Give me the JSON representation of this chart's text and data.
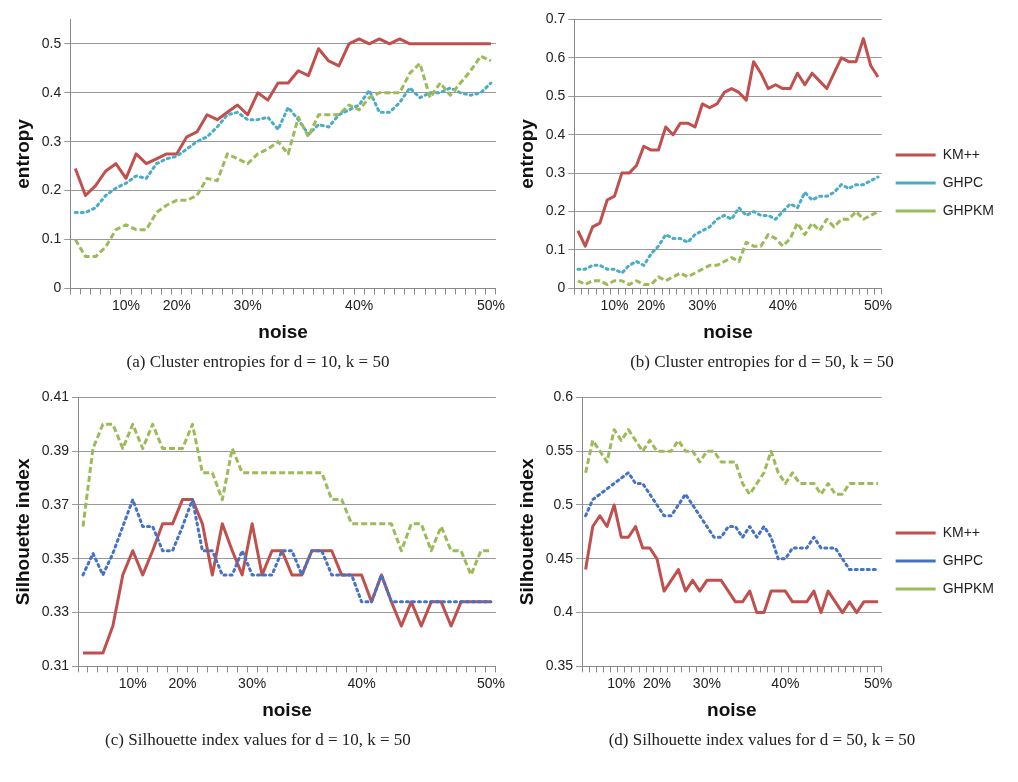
{
  "chart_data": [
    {
      "type": "line",
      "xlabel": "noise",
      "ylabel": "entropy",
      "annotations": [
        "(a) Cluster entropies for d = 10, k = 50"
      ],
      "categories": [
        null,
        null,
        null,
        null,
        null,
        "10%",
        null,
        null,
        null,
        null,
        "20%",
        null,
        null,
        null,
        null,
        null,
        null,
        "30%",
        null,
        null,
        null,
        null,
        null,
        null,
        null,
        null,
        null,
        null,
        "40%",
        null,
        null,
        null,
        null,
        null,
        null,
        null,
        null,
        null,
        null,
        null,
        null,
        "50%"
      ],
      "series": [
        {
          "color": "#c0504d",
          "line_style": "solid",
          "values": [
            0.245,
            0.19,
            0.21,
            0.24,
            0.255,
            0.225,
            0.275,
            0.255,
            0.265,
            0.275,
            0.275,
            0.31,
            0.32,
            0.355,
            0.345,
            0.36,
            0.375,
            0.355,
            0.4,
            0.385,
            0.42,
            0.42,
            0.445,
            0.435,
            0.49,
            0.465,
            0.455,
            0.5,
            0.51,
            0.5,
            0.51,
            0.5,
            0.51,
            0.5,
            0.5,
            0.5,
            0.5,
            0.5,
            0.5,
            0.5,
            0.5,
            0.5
          ]
        },
        {
          "color": "#4bacc6",
          "line_style": "dotted",
          "values": [
            0.155,
            0.155,
            0.165,
            0.19,
            0.205,
            0.215,
            0.23,
            0.225,
            0.255,
            0.265,
            0.27,
            0.285,
            0.3,
            0.31,
            0.33,
            0.355,
            0.36,
            0.345,
            0.345,
            0.35,
            0.325,
            0.37,
            0.345,
            0.315,
            0.335,
            0.33,
            0.355,
            0.365,
            0.375,
            0.405,
            0.36,
            0.36,
            0.38,
            0.41,
            0.39,
            0.4,
            0.4,
            0.41,
            0.4,
            0.395,
            0.4,
            0.42
          ]
        },
        {
          "color": "#9bbb59",
          "line_style": "dashed",
          "values": [
            0.1,
            0.065,
            0.065,
            0.085,
            0.12,
            0.13,
            0.12,
            0.12,
            0.155,
            0.17,
            0.18,
            0.18,
            0.19,
            0.225,
            0.22,
            0.275,
            0.265,
            0.255,
            0.275,
            0.285,
            0.3,
            0.275,
            0.35,
            0.31,
            0.355,
            0.355,
            0.355,
            0.375,
            0.365,
            0.39,
            0.4,
            0.4,
            0.4,
            0.44,
            0.46,
            0.39,
            0.42,
            0.395,
            0.42,
            0.445,
            0.475,
            0.465
          ]
        }
      ],
      "ylim": [
        0,
        0.55
      ],
      "yticks": [
        0,
        0.1,
        0.2,
        0.3,
        0.4,
        0.5
      ],
      "grid": "y",
      "legend": false
    },
    {
      "type": "line",
      "xlabel": "noise",
      "ylabel": "entropy",
      "annotations": [
        "(b) Cluster entropies for d = 50, k = 50"
      ],
      "categories": [
        null,
        null,
        null,
        null,
        null,
        "10%",
        null,
        null,
        null,
        null,
        "20%",
        null,
        null,
        null,
        null,
        null,
        null,
        "30%",
        null,
        null,
        null,
        null,
        null,
        null,
        null,
        null,
        null,
        null,
        "40%",
        null,
        null,
        null,
        null,
        null,
        null,
        null,
        null,
        null,
        null,
        null,
        null,
        "50%"
      ],
      "series": [
        {
          "name": "KM++",
          "color": "#c0504d",
          "line_style": "solid",
          "values": [
            0.15,
            0.11,
            0.16,
            0.17,
            0.23,
            0.24,
            0.3,
            0.3,
            0.32,
            0.37,
            0.36,
            0.36,
            0.42,
            0.4,
            0.43,
            0.43,
            0.42,
            0.48,
            0.47,
            0.48,
            0.51,
            0.52,
            0.51,
            0.49,
            0.59,
            0.56,
            0.52,
            0.53,
            0.52,
            0.52,
            0.56,
            0.53,
            0.56,
            0.54,
            0.52,
            0.56,
            0.6,
            0.59,
            0.59,
            0.65,
            0.58,
            0.55
          ]
        },
        {
          "name": "GHPC",
          "color": "#4bacc6",
          "line_style": "dotted",
          "values": [
            0.05,
            0.05,
            0.06,
            0.06,
            0.05,
            0.05,
            0.04,
            0.06,
            0.07,
            0.06,
            0.09,
            0.11,
            0.14,
            0.13,
            0.13,
            0.12,
            0.14,
            0.15,
            0.16,
            0.18,
            0.19,
            0.18,
            0.21,
            0.19,
            0.2,
            0.19,
            0.19,
            0.18,
            0.2,
            0.22,
            0.21,
            0.25,
            0.23,
            0.24,
            0.24,
            0.25,
            0.27,
            0.26,
            0.27,
            0.27,
            0.28,
            0.29
          ]
        },
        {
          "name": "GHPKM",
          "color": "#9bbb59",
          "line_style": "dashed",
          "values": [
            0.02,
            0.01,
            0.02,
            0.02,
            0.01,
            0.02,
            0.02,
            0.01,
            0.02,
            0.01,
            0.01,
            0.03,
            0.02,
            0.03,
            0.04,
            0.03,
            0.04,
            0.05,
            0.06,
            0.06,
            0.07,
            0.08,
            0.07,
            0.12,
            0.11,
            0.11,
            0.14,
            0.13,
            0.11,
            0.13,
            0.17,
            0.14,
            0.17,
            0.15,
            0.18,
            0.16,
            0.18,
            0.18,
            0.2,
            0.18,
            0.19,
            0.2
          ]
        }
      ],
      "ylim": [
        0,
        0.7
      ],
      "yticks": [
        0,
        0.1,
        0.2,
        0.3,
        0.4,
        0.5,
        0.6,
        0.7
      ],
      "grid": "y",
      "legend": "right"
    },
    {
      "type": "line",
      "xlabel": "noise",
      "ylabel": "Silhouette index",
      "annotations": [
        "(c) Silhouette index values for d = 10, k = 50"
      ],
      "categories": [
        null,
        null,
        null,
        null,
        null,
        "10%",
        null,
        null,
        null,
        null,
        "20%",
        null,
        null,
        null,
        null,
        null,
        null,
        "30%",
        null,
        null,
        null,
        null,
        null,
        null,
        null,
        null,
        null,
        null,
        "40%",
        null,
        null,
        null,
        null,
        null,
        null,
        null,
        null,
        null,
        null,
        null,
        null,
        "50%"
      ],
      "series": [
        {
          "color": "#c0504d",
          "line_style": "solid",
          "values": [
            0.315,
            0.315,
            0.315,
            0.325,
            0.344,
            0.353,
            0.344,
            0.353,
            0.363,
            0.363,
            0.372,
            0.372,
            0.363,
            0.344,
            0.363,
            0.353,
            0.344,
            0.363,
            0.344,
            0.353,
            0.353,
            0.344,
            0.344,
            0.353,
            0.353,
            0.353,
            0.344,
            0.344,
            0.344,
            0.334,
            0.344,
            0.334,
            0.325,
            0.334,
            0.325,
            0.334,
            0.334,
            0.325,
            0.334,
            0.334,
            0.334,
            0.334
          ]
        },
        {
          "color": "#4472c4",
          "line_style": "dotted",
          "values": [
            0.344,
            0.352,
            0.344,
            0.352,
            0.362,
            0.372,
            0.362,
            0.362,
            0.353,
            0.353,
            0.362,
            0.372,
            0.353,
            0.353,
            0.344,
            0.344,
            0.353,
            0.344,
            0.344,
            0.344,
            0.353,
            0.353,
            0.344,
            0.353,
            0.353,
            0.344,
            0.344,
            0.344,
            0.334,
            0.334,
            0.344,
            0.334,
            0.334,
            0.334,
            0.334,
            0.334,
            0.334,
            0.334,
            0.334,
            0.334,
            0.334,
            0.334
          ]
        },
        {
          "color": "#9bbb59",
          "line_style": "dashed",
          "values": [
            0.362,
            0.391,
            0.4,
            0.4,
            0.391,
            0.4,
            0.391,
            0.4,
            0.391,
            0.391,
            0.391,
            0.4,
            0.382,
            0.382,
            0.372,
            0.391,
            0.382,
            0.382,
            0.382,
            0.382,
            0.382,
            0.382,
            0.382,
            0.382,
            0.382,
            0.372,
            0.372,
            0.363,
            0.363,
            0.363,
            0.363,
            0.363,
            0.353,
            0.363,
            0.363,
            0.353,
            0.362,
            0.353,
            0.353,
            0.344,
            0.353,
            0.353
          ]
        }
      ],
      "ylim": [
        0.31,
        0.41
      ],
      "yticks": [
        0.31,
        0.33,
        0.35,
        0.37,
        0.39,
        0.41
      ],
      "grid": "y",
      "legend": false
    },
    {
      "type": "line",
      "xlabel": "noise",
      "ylabel": "Silhouette index",
      "annotations": [
        "(d) Silhouette index values for d = 50, k = 50"
      ],
      "categories": [
        null,
        null,
        null,
        null,
        null,
        "10%",
        null,
        null,
        null,
        null,
        "20%",
        null,
        null,
        null,
        null,
        null,
        null,
        "30%",
        null,
        null,
        null,
        null,
        null,
        null,
        null,
        null,
        null,
        null,
        "40%",
        null,
        null,
        null,
        null,
        null,
        null,
        null,
        null,
        null,
        null,
        null,
        null,
        "50%"
      ],
      "series": [
        {
          "name": "KM++",
          "color": "#c0504d",
          "line_style": "solid",
          "values": [
            0.44,
            0.48,
            0.49,
            0.48,
            0.5,
            0.47,
            0.47,
            0.48,
            0.46,
            0.46,
            0.45,
            0.42,
            0.43,
            0.44,
            0.42,
            0.43,
            0.42,
            0.43,
            0.43,
            0.43,
            0.42,
            0.41,
            0.41,
            0.42,
            0.4,
            0.4,
            0.42,
            0.42,
            0.42,
            0.41,
            0.41,
            0.41,
            0.42,
            0.4,
            0.42,
            0.41,
            0.4,
            0.41,
            0.4,
            0.41,
            0.41,
            0.41
          ]
        },
        {
          "name": "GHPC",
          "color": "#4472c4",
          "line_style": "dotted",
          "values": [
            0.49,
            0.505,
            0.51,
            0.515,
            0.52,
            0.525,
            0.53,
            0.52,
            0.52,
            0.51,
            0.5,
            0.49,
            0.49,
            0.5,
            0.51,
            0.5,
            0.49,
            0.48,
            0.47,
            0.47,
            0.48,
            0.48,
            0.47,
            0.48,
            0.47,
            0.48,
            0.47,
            0.45,
            0.45,
            0.46,
            0.46,
            0.46,
            0.47,
            0.46,
            0.46,
            0.46,
            0.45,
            0.44,
            0.44,
            0.44,
            0.44,
            0.44
          ]
        },
        {
          "name": "GHPKM",
          "color": "#9bbb59",
          "line_style": "dashed",
          "values": [
            0.53,
            0.56,
            0.55,
            0.54,
            0.57,
            0.56,
            0.57,
            0.56,
            0.55,
            0.56,
            0.55,
            0.55,
            0.55,
            0.56,
            0.55,
            0.55,
            0.54,
            0.55,
            0.55,
            0.54,
            0.54,
            0.54,
            0.52,
            0.51,
            0.52,
            0.53,
            0.55,
            0.53,
            0.52,
            0.53,
            0.52,
            0.52,
            0.52,
            0.51,
            0.52,
            0.51,
            0.51,
            0.52,
            0.52,
            0.52,
            0.52,
            0.52
          ]
        }
      ],
      "ylim": [
        0.35,
        0.6
      ],
      "yticks": [
        0.35,
        0.4,
        0.45,
        0.5,
        0.55,
        0.6
      ],
      "grid": "y",
      "legend": "right"
    }
  ]
}
